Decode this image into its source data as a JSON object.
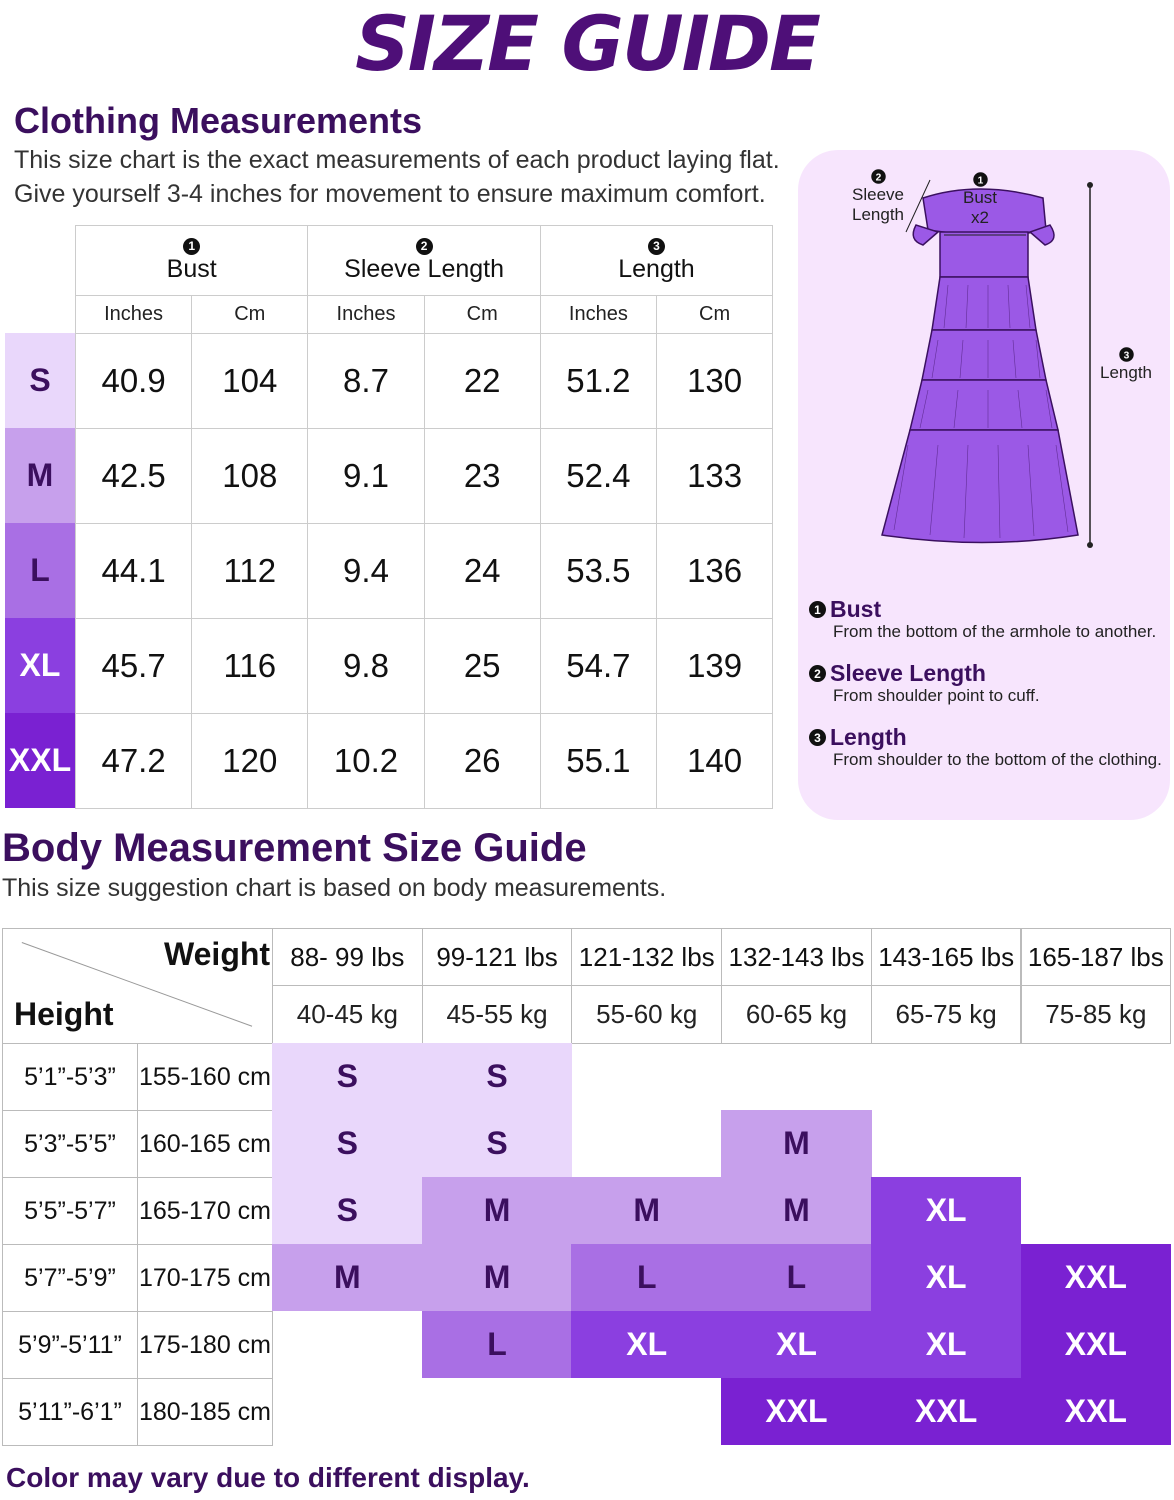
{
  "title": "SIZE GUIDE",
  "clothing": {
    "heading": "Clothing Measurements",
    "description": [
      "This size chart is the exact measurements of each product laying flat.",
      "Give yourself 3-4 inches for movement to ensure maximum comfort."
    ],
    "table": {
      "columns": [
        {
          "number": "1",
          "name": "Bust",
          "units": [
            "Inches",
            "Cm"
          ]
        },
        {
          "number": "2",
          "name": "Sleeve Length",
          "units": [
            "Inches",
            "Cm"
          ]
        },
        {
          "number": "3",
          "name": "Length",
          "units": [
            "Inches",
            "Cm"
          ]
        }
      ],
      "rows": [
        {
          "size": "S",
          "values": [
            "40.9",
            "104",
            "8.7",
            "22",
            "51.2",
            "130"
          ]
        },
        {
          "size": "M",
          "values": [
            "42.5",
            "108",
            "9.1",
            "23",
            "52.4",
            "133"
          ]
        },
        {
          "size": "L",
          "values": [
            "44.1",
            "112",
            "9.4",
            "24",
            "53.5",
            "136"
          ]
        },
        {
          "size": "XL",
          "values": [
            "45.7",
            "116",
            "9.8",
            "25",
            "54.7",
            "139"
          ]
        },
        {
          "size": "XXL",
          "values": [
            "47.2",
            "120",
            "10.2",
            "26",
            "55.1",
            "140"
          ]
        }
      ]
    }
  },
  "size_colors": {
    "S": "#e9d7fb",
    "M": "#c7a0ec",
    "L": "#a96fe4",
    "XL": "#8b3fe0",
    "XXL": "#7a21d2"
  },
  "size_text_colors": {
    "S": "#3b0f5e",
    "M": "#3b0f5e",
    "L": "#3b0f5e",
    "XL": "#ffffff",
    "XXL": "#ffffff"
  },
  "diagram": {
    "labels": [
      {
        "number": "2",
        "lines": [
          "Sleeve",
          "Length"
        ]
      },
      {
        "number": "1",
        "lines": [
          "Bust",
          "x2"
        ]
      },
      {
        "number": "3",
        "lines": [
          "Length"
        ]
      }
    ],
    "legend": [
      {
        "number": "1",
        "name": "Bust",
        "description": "From the bottom of the armhole to another."
      },
      {
        "number": "2",
        "name": "Sleeve Length",
        "description": "From shoulder point to cuff."
      },
      {
        "number": "3",
        "name": "Length",
        "description": "From shoulder to the bottom of the clothing."
      }
    ]
  },
  "body": {
    "heading": "Body Measurement Size Guide",
    "description": "This size suggestion chart is based on body measurements.",
    "weight_label": "Weight",
    "height_label": "Height",
    "weights": [
      {
        "lbs": "88- 99 lbs",
        "kg": "40-45 kg"
      },
      {
        "lbs": "99-121 lbs",
        "kg": "45-55 kg"
      },
      {
        "lbs": "121-132 lbs",
        "kg": "55-60 kg"
      },
      {
        "lbs": "132-143 lbs",
        "kg": "60-65 kg"
      },
      {
        "lbs": "143-165 lbs",
        "kg": "65-75 kg"
      },
      {
        "lbs": "165-187 lbs",
        "kg": "75-85 kg"
      }
    ],
    "rows": [
      {
        "height_ft": "5’1”-5’3”",
        "height_cm": "155-160 cm",
        "sizes": [
          "S",
          "S",
          null,
          null,
          null,
          null
        ]
      },
      {
        "height_ft": "5’3”-5’5”",
        "height_cm": "160-165 cm",
        "sizes": [
          "S",
          "S",
          null,
          "M",
          null,
          null
        ]
      },
      {
        "height_ft": "5’5”-5’7”",
        "height_cm": "165-170 cm",
        "sizes": [
          "S",
          "M",
          "M",
          "M",
          "XL",
          null
        ]
      },
      {
        "height_ft": "5’7”-5’9”",
        "height_cm": "170-175 cm",
        "sizes": [
          "M",
          "M",
          "L",
          "L",
          "XL",
          "XXL"
        ]
      },
      {
        "height_ft": "5’9”-5’11”",
        "height_cm": "175-180 cm",
        "sizes": [
          null,
          "L",
          "XL",
          "XL",
          "XL",
          "XXL"
        ]
      },
      {
        "height_ft": "5’11”-6’1”",
        "height_cm": "180-185 cm",
        "sizes": [
          null,
          null,
          null,
          "XXL",
          "XXL",
          "XXL"
        ]
      }
    ]
  },
  "note": "Color may vary due to different display."
}
